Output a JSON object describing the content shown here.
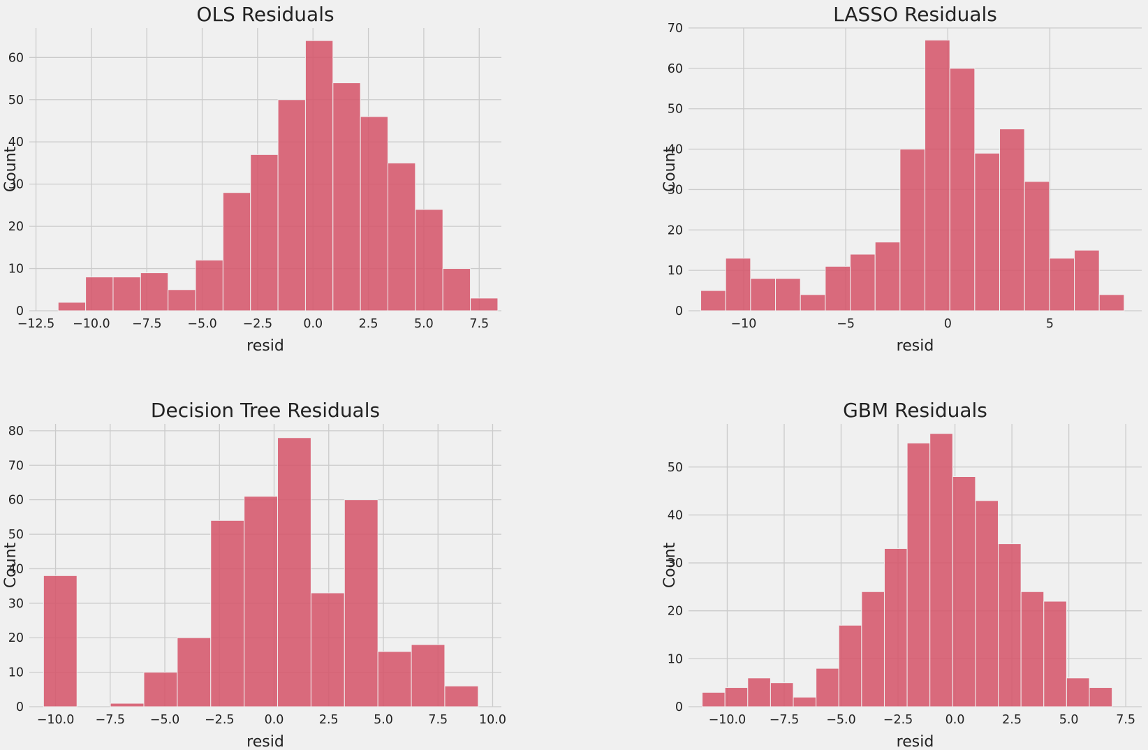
{
  "colors": {
    "background": "#f0f0f0",
    "bar": "#d5566b",
    "grid": "#cbcbcb"
  },
  "chart_data": [
    {
      "type": "bar",
      "title": "OLS Residuals",
      "xlabel": "resid",
      "ylabel": "Count",
      "xlim": [
        -12.8,
        8.5
      ],
      "ylim": [
        0,
        67
      ],
      "xticks": [
        -12.5,
        -10.0,
        -7.5,
        -5.0,
        -2.5,
        0.0,
        2.5,
        5.0,
        7.5
      ],
      "xtick_labels": [
        "−12.5",
        "−10.0",
        "−7.5",
        "−5.0",
        "−2.5",
        "0.0",
        "2.5",
        "5.0",
        "7.5"
      ],
      "yticks": [
        0,
        10,
        20,
        30,
        40,
        50,
        60
      ],
      "ytick_labels": [
        "0",
        "10",
        "20",
        "30",
        "40",
        "50",
        "60"
      ],
      "grid": true,
      "bin_start": -11.5,
      "bin_width": 1.24,
      "values": [
        2,
        8,
        8,
        9,
        5,
        12,
        28,
        37,
        50,
        64,
        54,
        46,
        35,
        24,
        10,
        3
      ]
    },
    {
      "type": "bar",
      "title": "LASSO Residuals",
      "xlabel": "resid",
      "ylabel": "Count",
      "xlim": [
        -12.7,
        9.5
      ],
      "ylim": [
        0,
        70
      ],
      "xticks": [
        -10,
        -5,
        0,
        5
      ],
      "xtick_labels": [
        "−10",
        "−5",
        "0",
        "5"
      ],
      "yticks": [
        0,
        10,
        20,
        30,
        40,
        50,
        60,
        70
      ],
      "ytick_labels": [
        "0",
        "10",
        "20",
        "30",
        "40",
        "50",
        "60",
        "70"
      ],
      "grid": true,
      "bin_start": -12.1,
      "bin_width": 1.22,
      "values": [
        5,
        13,
        8,
        8,
        4,
        11,
        14,
        17,
        40,
        67,
        60,
        39,
        45,
        32,
        13,
        15,
        4
      ]
    },
    {
      "type": "bar",
      "title": "Decision Tree Residuals",
      "xlabel": "resid",
      "ylabel": "Count",
      "xlim": [
        -11.2,
        10.4
      ],
      "ylim": [
        0,
        82
      ],
      "xticks": [
        -10.0,
        -7.5,
        -5.0,
        -2.5,
        0.0,
        2.5,
        5.0,
        7.5,
        10.0
      ],
      "xtick_labels": [
        "−10.0",
        "−7.5",
        "−5.0",
        "−2.5",
        "0.0",
        "2.5",
        "5.0",
        "7.5",
        "10.0"
      ],
      "yticks": [
        0,
        10,
        20,
        30,
        40,
        50,
        60,
        70,
        80
      ],
      "ytick_labels": [
        "0",
        "10",
        "20",
        "30",
        "40",
        "50",
        "60",
        "70",
        "80"
      ],
      "grid": true,
      "bin_start": -10.55,
      "bin_width": 1.53,
      "values": [
        38,
        0,
        1,
        10,
        20,
        54,
        61,
        78,
        33,
        60,
        16,
        18,
        6
      ]
    },
    {
      "type": "bar",
      "title": "GBM Residuals",
      "xlabel": "resid",
      "ylabel": "Count",
      "xlim": [
        -11.7,
        8.2
      ],
      "ylim": [
        0,
        59
      ],
      "xticks": [
        -10.0,
        -7.5,
        -5.0,
        -2.5,
        0.0,
        2.5,
        5.0,
        7.5
      ],
      "xtick_labels": [
        "−10.0",
        "−7.5",
        "−5.0",
        "−2.5",
        "0.0",
        "2.5",
        "5.0",
        "7.5"
      ],
      "yticks": [
        0,
        10,
        20,
        30,
        40,
        50
      ],
      "ytick_labels": [
        "0",
        "10",
        "20",
        "30",
        "40",
        "50"
      ],
      "grid": true,
      "bin_start": -11.1,
      "bin_width": 1.0,
      "values": [
        3,
        4,
        6,
        5,
        2,
        8,
        17,
        24,
        33,
        55,
        57,
        48,
        43,
        34,
        24,
        22,
        6,
        4
      ]
    }
  ]
}
